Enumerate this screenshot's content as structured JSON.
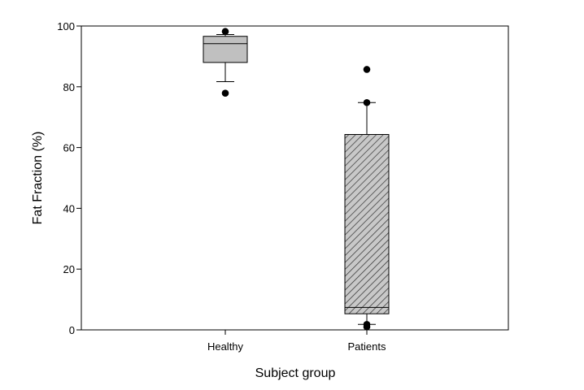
{
  "chart_data": {
    "type": "box",
    "xlabel": "Subject group",
    "ylabel": "Fat Fraction (%)",
    "ylim": [
      0,
      100
    ],
    "yticks": [
      0,
      20,
      40,
      60,
      80,
      100
    ],
    "categories": [
      "Healthy",
      "Patients"
    ],
    "boxes": [
      {
        "category": "Healthy",
        "whisker_low": 81.7,
        "q1": 88.0,
        "median": 94.2,
        "q3": 96.6,
        "whisker_high": 97.2,
        "outliers": [
          98.2,
          77.9
        ],
        "fill": "#c0c0c0",
        "pattern": "solid"
      },
      {
        "category": "Patients",
        "whisker_low": 1.8,
        "q1": 5.3,
        "median": 7.4,
        "q3": 64.3,
        "whisker_high": 74.8,
        "outliers": [
          85.7,
          74.8,
          1.8,
          1.0
        ],
        "fill": "#c0c0c0",
        "pattern": "diagonal-hatch"
      }
    ],
    "grid": false,
    "legend": "none"
  }
}
